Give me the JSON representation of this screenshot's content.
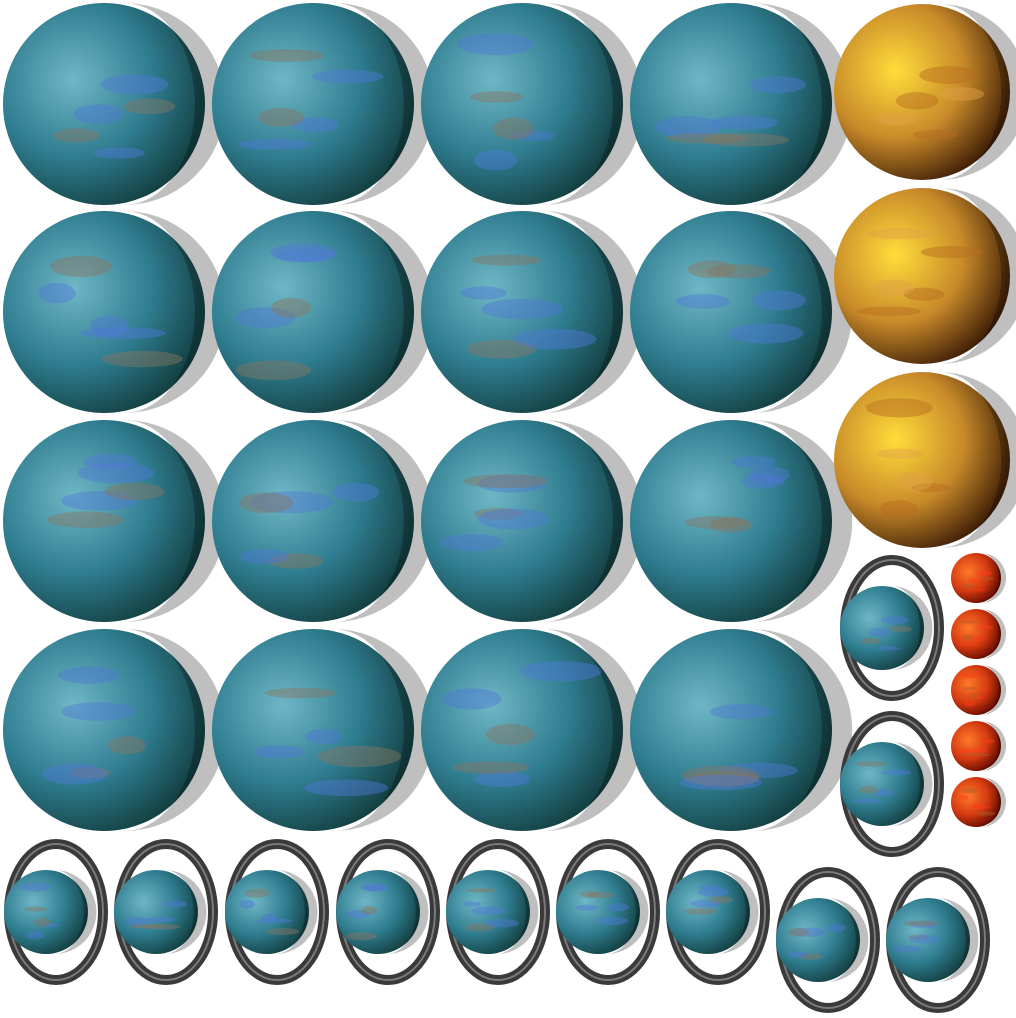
{
  "sprite_sheet": {
    "background": "#ffffff",
    "palettes": {
      "ocean": {
        "light": "#6fb7c6",
        "mid": "#2f7d90",
        "dark": "#123d3e",
        "land": "#8a7560",
        "cloud": "#4f78d8"
      },
      "desert": {
        "light": "#ffdd3a",
        "mid": "#c88a2a",
        "dark": "#3a1a05",
        "land": "#e0a14a",
        "cloud": "#b66a1f"
      },
      "lava": {
        "light": "#ff7a2a",
        "mid": "#d43a10",
        "dark": "#5a0800",
        "land": "#b05a2a",
        "cloud": "#ff3a1a"
      },
      "ring": {
        "outer": "#3a3a3a",
        "inner": "#7a7a7a"
      }
    },
    "groups": [
      {
        "name": "large-ocean-planet",
        "palette": "ocean",
        "count": 16,
        "ringed": false
      },
      {
        "name": "large-desert-planet",
        "palette": "desert",
        "count": 3,
        "ringed": false
      },
      {
        "name": "ringed-ocean-planet",
        "palette": "ocean",
        "count": 11,
        "ringed": true
      },
      {
        "name": "small-lava-planet",
        "palette": "lava",
        "count": 5,
        "ringed": false
      }
    ]
  }
}
